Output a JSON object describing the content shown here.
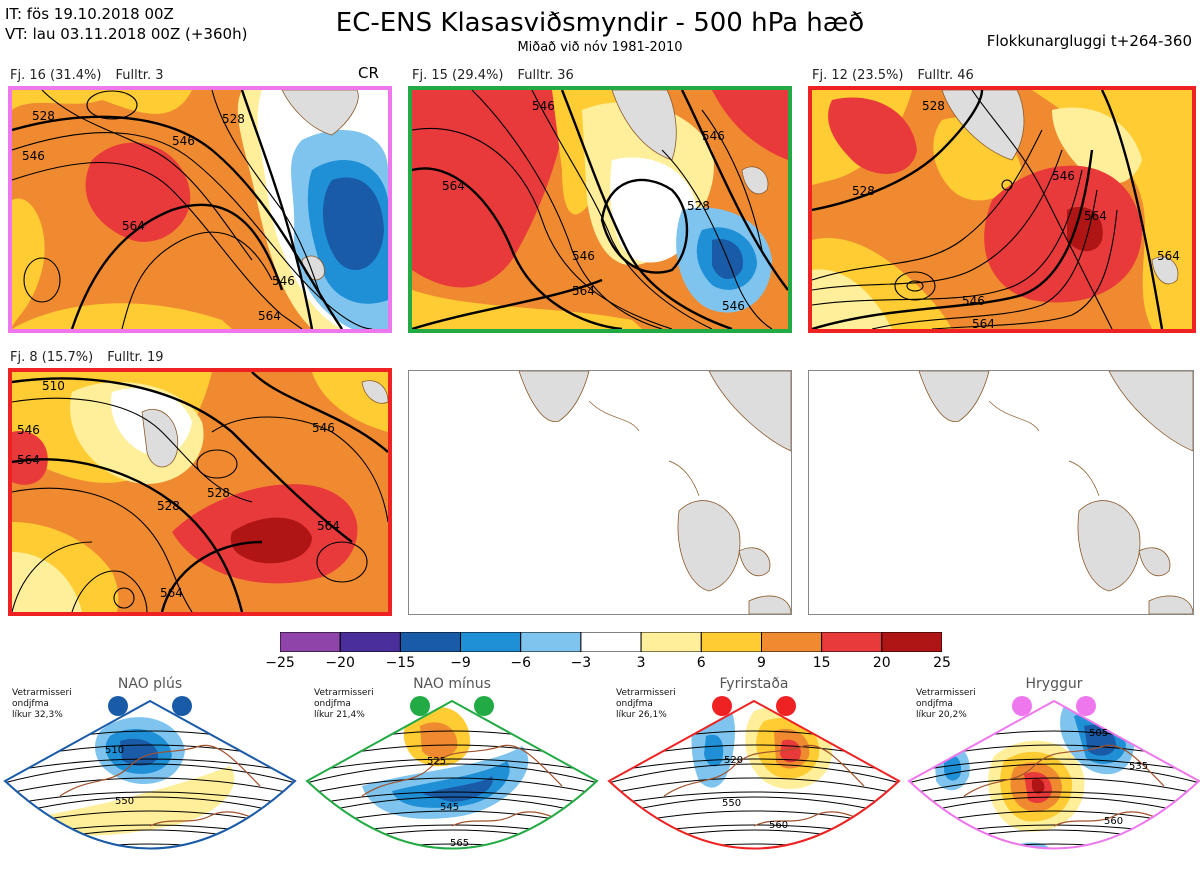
{
  "header": {
    "it_line": "IT: fös 19.10.2018 00Z",
    "vt_line": "VT: lau 03.11.2018 00Z  (+360h)",
    "title": "EC-ENS Klasasviðsmyndir - 500 hPa hæð",
    "subtitle": "Miðað við nóv 1981-2010",
    "window": "Flokkunargluggi t+264-360"
  },
  "panels": [
    {
      "cluster": "Fj. 16 (31.4%)",
      "control": "Fulltr. 3",
      "tag": "CR",
      "border_color": "#ee77ee",
      "contours": [
        "528",
        "546",
        "564",
        "528",
        "546",
        "564",
        "546"
      ]
    },
    {
      "cluster": "Fj. 15 (29.4%)",
      "control": "Fulltr. 36",
      "tag": "",
      "border_color": "#22aa44",
      "contours": [
        "546",
        "564",
        "528",
        "546",
        "564",
        "546",
        "546"
      ]
    },
    {
      "cluster": "Fj. 12 (23.5%)",
      "control": "Fulltr. 46",
      "tag": "",
      "border_color": "#ee2222",
      "contours": [
        "528",
        "546",
        "564",
        "546",
        "564",
        "528",
        "564"
      ]
    },
    {
      "cluster": "Fj. 8 (15.7%)",
      "control": "Fulltr. 19",
      "tag": "",
      "border_color": "#ee2222",
      "contours": [
        "510",
        "546",
        "564",
        "528",
        "546",
        "564",
        "528",
        "564"
      ]
    }
  ],
  "colorbar": {
    "ticks": [
      "−25",
      "−20",
      "−15",
      "−9",
      "−6",
      "−3",
      "3",
      "6",
      "9",
      "15",
      "20",
      "25"
    ],
    "colors": [
      "#8e44a8",
      "#4a2f9a",
      "#1a5ba8",
      "#1f8fd6",
      "#7ec4ee",
      "#ffffff",
      "#ffef9a",
      "#ffcc33",
      "#f08a30",
      "#e83a3a",
      "#b01515"
    ]
  },
  "regimes": [
    {
      "name": "NAO plús",
      "note": [
        "Vetrarmisseri",
        "ondjfma",
        "líkur 32,3%"
      ],
      "color": "#1a5ba8",
      "contours": [
        "510",
        "550"
      ]
    },
    {
      "name": "NAO mínus",
      "note": [
        "Vetrarmisseri",
        "ondjfma",
        "líkur 21,4%"
      ],
      "color": "#22aa44",
      "contours": [
        "525",
        "545",
        "565"
      ]
    },
    {
      "name": "Fyrirstaða",
      "note": [
        "Vetrarmisseri",
        "ondjfma",
        "líkur 26,1%"
      ],
      "color": "#ee2222",
      "contours": [
        "520",
        "550",
        "560"
      ]
    },
    {
      "name": "Hryggur",
      "note": [
        "Vetrarmisseri",
        "ondjfma",
        "líkur 20,2%"
      ],
      "color": "#ee77ee",
      "contours": [
        "505",
        "535",
        "560"
      ]
    }
  ]
}
